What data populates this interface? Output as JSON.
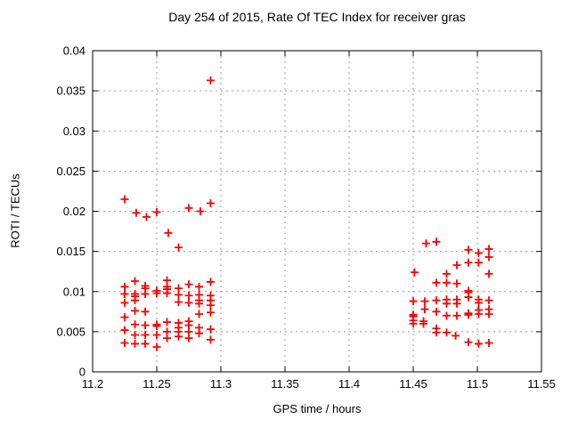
{
  "chart_data": {
    "type": "scatter",
    "title": "Day 254 of 2015, Rate Of TEC Index for receiver gras",
    "xlabel": "GPS time / hours",
    "ylabel": "ROTI / TECUs",
    "xlim": [
      11.2,
      11.55
    ],
    "ylim": [
      0,
      0.04
    ],
    "xticks": [
      11.2,
      11.25,
      11.3,
      11.35,
      11.4,
      11.45,
      11.5,
      11.55
    ],
    "xtick_labels": [
      "11.2",
      "11.25",
      "11.3",
      "11.35",
      "11.4",
      "11.45",
      "11.5",
      "11.55"
    ],
    "yticks": [
      0,
      0.005,
      0.01,
      0.015,
      0.02,
      0.025,
      0.03,
      0.035,
      0.04
    ],
    "ytick_labels": [
      "0",
      "0.005",
      "0.01",
      "0.015",
      "0.02",
      "0.025",
      "0.03",
      "0.035",
      "0.04"
    ],
    "grid": true,
    "legend_position": "none",
    "marker": {
      "shape": "plus",
      "color": "#ff0000",
      "size": 9,
      "stroke_width": 1.8
    },
    "grid_color": "#999999",
    "axis_color": "#000000",
    "background_color": "#ffffff",
    "series": [
      {
        "name": "ROTI",
        "points": [
          [
            11.292,
            0.0363
          ],
          [
            11.225,
            0.0215
          ],
          [
            11.234,
            0.0198
          ],
          [
            11.242,
            0.0193
          ],
          [
            11.25,
            0.0199
          ],
          [
            11.259,
            0.0173
          ],
          [
            11.267,
            0.0155
          ],
          [
            11.275,
            0.0204
          ],
          [
            11.284,
            0.02
          ],
          [
            11.292,
            0.021
          ],
          [
            11.225,
            0.0106
          ],
          [
            11.225,
            0.0097
          ],
          [
            11.225,
            0.0086
          ],
          [
            11.225,
            0.0068
          ],
          [
            11.225,
            0.0052
          ],
          [
            11.225,
            0.0036
          ],
          [
            11.233,
            0.0113
          ],
          [
            11.233,
            0.0097
          ],
          [
            11.233,
            0.0094
          ],
          [
            11.233,
            0.0089
          ],
          [
            11.233,
            0.0076
          ],
          [
            11.233,
            0.0059
          ],
          [
            11.233,
            0.0046
          ],
          [
            11.233,
            0.0035
          ],
          [
            11.241,
            0.0107
          ],
          [
            11.241,
            0.0104
          ],
          [
            11.241,
            0.0097
          ],
          [
            11.241,
            0.0075
          ],
          [
            11.241,
            0.0058
          ],
          [
            11.241,
            0.0046
          ],
          [
            11.241,
            0.0035
          ],
          [
            11.25,
            0.0101
          ],
          [
            11.25,
            0.0098
          ],
          [
            11.25,
            0.0059
          ],
          [
            11.25,
            0.0057
          ],
          [
            11.25,
            0.0046
          ],
          [
            11.25,
            0.0031
          ],
          [
            11.258,
            0.0114
          ],
          [
            11.258,
            0.0106
          ],
          [
            11.258,
            0.0103
          ],
          [
            11.258,
            0.0098
          ],
          [
            11.258,
            0.0062
          ],
          [
            11.258,
            0.005
          ],
          [
            11.258,
            0.0042
          ],
          [
            11.267,
            0.0104
          ],
          [
            11.267,
            0.0096
          ],
          [
            11.267,
            0.0087
          ],
          [
            11.267,
            0.0061
          ],
          [
            11.267,
            0.0055
          ],
          [
            11.267,
            0.005
          ],
          [
            11.267,
            0.0044
          ],
          [
            11.275,
            0.0109
          ],
          [
            11.275,
            0.0095
          ],
          [
            11.275,
            0.0086
          ],
          [
            11.275,
            0.0063
          ],
          [
            11.275,
            0.0058
          ],
          [
            11.275,
            0.005
          ],
          [
            11.275,
            0.0042
          ],
          [
            11.283,
            0.0106
          ],
          [
            11.283,
            0.0096
          ],
          [
            11.283,
            0.0089
          ],
          [
            11.283,
            0.0085
          ],
          [
            11.283,
            0.0072
          ],
          [
            11.283,
            0.0055
          ],
          [
            11.283,
            0.0048
          ],
          [
            11.292,
            0.0112
          ],
          [
            11.292,
            0.0095
          ],
          [
            11.292,
            0.0089
          ],
          [
            11.292,
            0.0083
          ],
          [
            11.292,
            0.0074
          ],
          [
            11.292,
            0.0053
          ],
          [
            11.292,
            0.004
          ],
          [
            11.451,
            0.0124
          ],
          [
            11.46,
            0.016
          ],
          [
            11.468,
            0.0162
          ],
          [
            11.468,
            0.0111
          ],
          [
            11.476,
            0.0122
          ],
          [
            11.476,
            0.0111
          ],
          [
            11.484,
            0.0133
          ],
          [
            11.484,
            0.011
          ],
          [
            11.493,
            0.0152
          ],
          [
            11.493,
            0.0136
          ],
          [
            11.493,
            0.0101
          ],
          [
            11.501,
            0.0148
          ],
          [
            11.501,
            0.0136
          ],
          [
            11.509,
            0.0153
          ],
          [
            11.509,
            0.0143
          ],
          [
            11.509,
            0.0122
          ],
          [
            11.45,
            0.0088
          ],
          [
            11.45,
            0.0071
          ],
          [
            11.45,
            0.0069
          ],
          [
            11.45,
            0.0064
          ],
          [
            11.45,
            0.006
          ],
          [
            11.459,
            0.0088
          ],
          [
            11.459,
            0.0078
          ],
          [
            11.458,
            0.0063
          ],
          [
            11.458,
            0.006
          ],
          [
            11.468,
            0.0089
          ],
          [
            11.468,
            0.0075
          ],
          [
            11.468,
            0.0054
          ],
          [
            11.468,
            0.0049
          ],
          [
            11.476,
            0.009
          ],
          [
            11.476,
            0.0085
          ],
          [
            11.476,
            0.007
          ],
          [
            11.476,
            0.0049
          ],
          [
            11.484,
            0.009
          ],
          [
            11.484,
            0.0085
          ],
          [
            11.484,
            0.007
          ],
          [
            11.483,
            0.0045
          ],
          [
            11.493,
            0.0099
          ],
          [
            11.493,
            0.0093
          ],
          [
            11.493,
            0.0073
          ],
          [
            11.493,
            0.0071
          ],
          [
            11.493,
            0.0037
          ],
          [
            11.501,
            0.009
          ],
          [
            11.501,
            0.0086
          ],
          [
            11.501,
            0.0077
          ],
          [
            11.501,
            0.0072
          ],
          [
            11.501,
            0.0035
          ],
          [
            11.509,
            0.0089
          ],
          [
            11.509,
            0.0078
          ],
          [
            11.509,
            0.0072
          ],
          [
            11.509,
            0.0036
          ]
        ]
      }
    ]
  }
}
